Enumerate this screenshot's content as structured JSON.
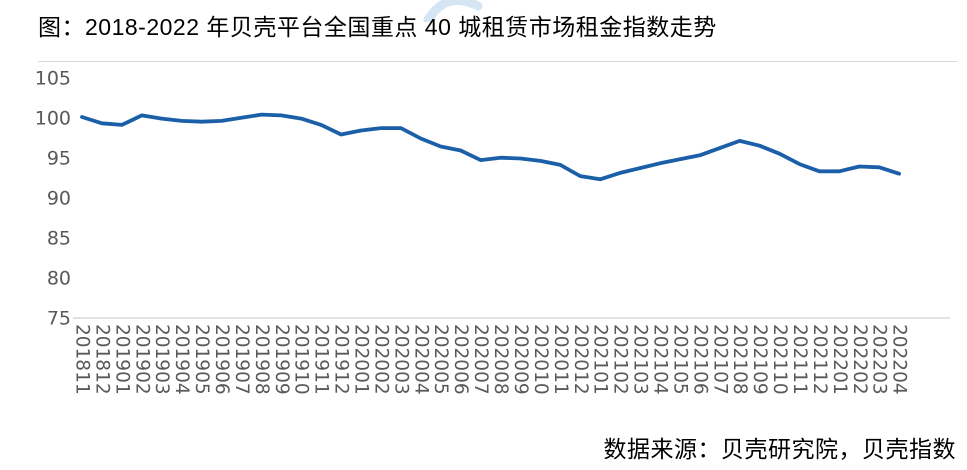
{
  "title": "图：2018-2022 年贝壳平台全国重点 40 城租赁市场租金指数走势",
  "source": "数据来源：贝壳研究院，贝壳指数",
  "colors": {
    "line": "#1c5fa9",
    "axis_line": "#d9d9d9",
    "axis_text": "#595959",
    "text": "#000000",
    "watermark": "#cfe0f2"
  },
  "chart_data": {
    "type": "line",
    "title": "图：2018-2022 年贝壳平台全国重点 40 城租赁市场租金指数走势",
    "xlabel": "",
    "ylabel": "",
    "ylim": [
      75,
      105
    ],
    "yticks": [
      105,
      100,
      95,
      90,
      85,
      80,
      75
    ],
    "grid": false,
    "legend_position": "none",
    "x": [
      "201811",
      "201812",
      "201901",
      "201902",
      "201903",
      "201904",
      "201905",
      "201906",
      "201907",
      "201908",
      "201909",
      "201910",
      "201911",
      "201912",
      "202001",
      "202002",
      "202003",
      "202004",
      "202005",
      "202006",
      "202007",
      "202008",
      "202009",
      "202010",
      "202011",
      "202012",
      "202101",
      "202102",
      "202103",
      "202104",
      "202105",
      "202106",
      "202107",
      "202108",
      "202109",
      "202110",
      "202111",
      "202112",
      "202201",
      "202202",
      "202203",
      "202204"
    ],
    "values": [
      100.2,
      99.4,
      99.2,
      100.4,
      100.0,
      99.7,
      99.6,
      99.7,
      100.1,
      100.5,
      100.4,
      100.0,
      99.2,
      98.0,
      98.5,
      98.8,
      98.8,
      97.5,
      96.5,
      96.0,
      94.8,
      95.1,
      95.0,
      94.7,
      94.2,
      92.8,
      92.4,
      93.2,
      93.8,
      94.4,
      94.9,
      95.4,
      96.3,
      97.2,
      96.6,
      95.6,
      94.3,
      93.4,
      93.4,
      94.0,
      93.9,
      93.1
    ]
  }
}
